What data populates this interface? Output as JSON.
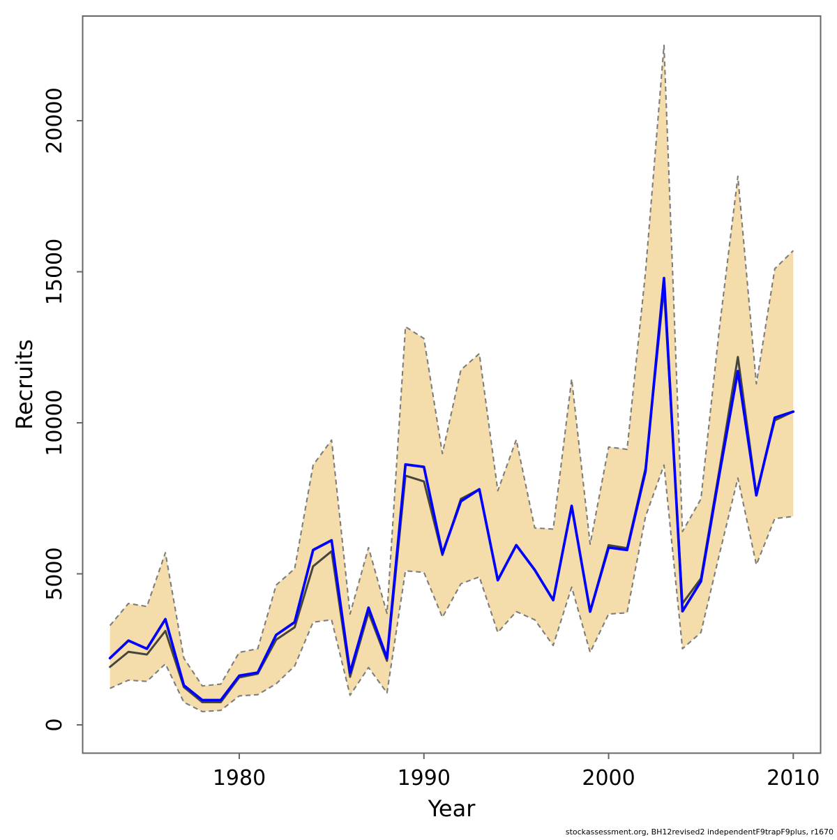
{
  "page": {
    "background": "#ffffff"
  },
  "footer": {
    "text": "stockassessment.org, BH12revised2  independentF9trapF9plus, r1670"
  },
  "colors": {
    "axis": "#666666",
    "text": "#000000"
  },
  "chart_data": {
    "type": "line",
    "title": "",
    "xlabel": "Year",
    "ylabel": "Recruits",
    "grid": false,
    "legend": "none",
    "xlim": [
      1971.52,
      2011.48
    ],
    "ylim": [
      -935,
      23464
    ],
    "x_ticks": {
      "values": [
        1980,
        1990,
        2000,
        2010
      ],
      "labels": [
        "1980",
        "1990",
        "2000",
        "2010"
      ]
    },
    "y_ticks": {
      "values": [
        0,
        5000,
        10000,
        15000,
        20000
      ],
      "labels": [
        "0",
        "5000",
        "10000",
        "15000",
        "20000"
      ]
    },
    "x": [
      1973,
      1974,
      1975,
      1976,
      1977,
      1978,
      1979,
      1980,
      1981,
      1982,
      1983,
      1984,
      1985,
      1986,
      1987,
      1988,
      1989,
      1990,
      1991,
      1992,
      1993,
      1994,
      1995,
      1996,
      1997,
      1998,
      1999,
      2000,
      2001,
      2002,
      2003,
      2004,
      2005,
      2006,
      2007,
      2008,
      2009,
      2010
    ],
    "series": [
      {
        "name": "model-estimate-dark",
        "color": "#45453c",
        "width": 3,
        "values": [
          1920,
          2420,
          2330,
          3110,
          1250,
          750,
          750,
          1570,
          1690,
          2820,
          3230,
          5250,
          5750,
          1590,
          3720,
          2120,
          8250,
          8060,
          5620,
          7480,
          7800,
          4790,
          5950,
          5130,
          4130,
          7250,
          3750,
          5950,
          5850,
          8500,
          14450,
          4020,
          4850,
          8450,
          12180,
          7650,
          10080,
          10370
        ]
      },
      {
        "name": "median-recruits-blue",
        "color": "#0000ff",
        "width": 3.7,
        "values": [
          2210,
          2790,
          2520,
          3500,
          1310,
          820,
          820,
          1630,
          1730,
          2980,
          3400,
          5790,
          6110,
          1730,
          3880,
          2210,
          8620,
          8540,
          5670,
          7400,
          7800,
          4790,
          5950,
          5130,
          4130,
          7250,
          3750,
          5870,
          5790,
          8400,
          14790,
          3760,
          4750,
          8300,
          11710,
          7600,
          10170,
          10370
        ]
      }
    ],
    "band": {
      "name": "confidence-interval",
      "fill": "#f4dcab",
      "edge_color": "#7d7d7d",
      "edge_style": "dashed",
      "lower": [
        1210,
        1480,
        1440,
        2020,
        750,
        440,
        480,
        960,
        1000,
        1360,
        1950,
        3400,
        3480,
        980,
        1900,
        1060,
        5100,
        5050,
        3560,
        4670,
        4900,
        3060,
        3750,
        3480,
        2630,
        4560,
        2400,
        3670,
        3710,
        6900,
        8600,
        2520,
        3060,
        5650,
        8170,
        5300,
        6830,
        6900
      ],
      "upper": [
        3290,
        4020,
        3920,
        5700,
        2210,
        1290,
        1350,
        2400,
        2520,
        4630,
        5170,
        8600,
        9430,
        3670,
        5870,
        3690,
        13180,
        12790,
        8980,
        11750,
        12290,
        7750,
        9440,
        6520,
        6480,
        11450,
        5980,
        9200,
        9120,
        15000,
        22500,
        6400,
        7480,
        13140,
        18160,
        11290,
        15100,
        15700
      ]
    }
  }
}
